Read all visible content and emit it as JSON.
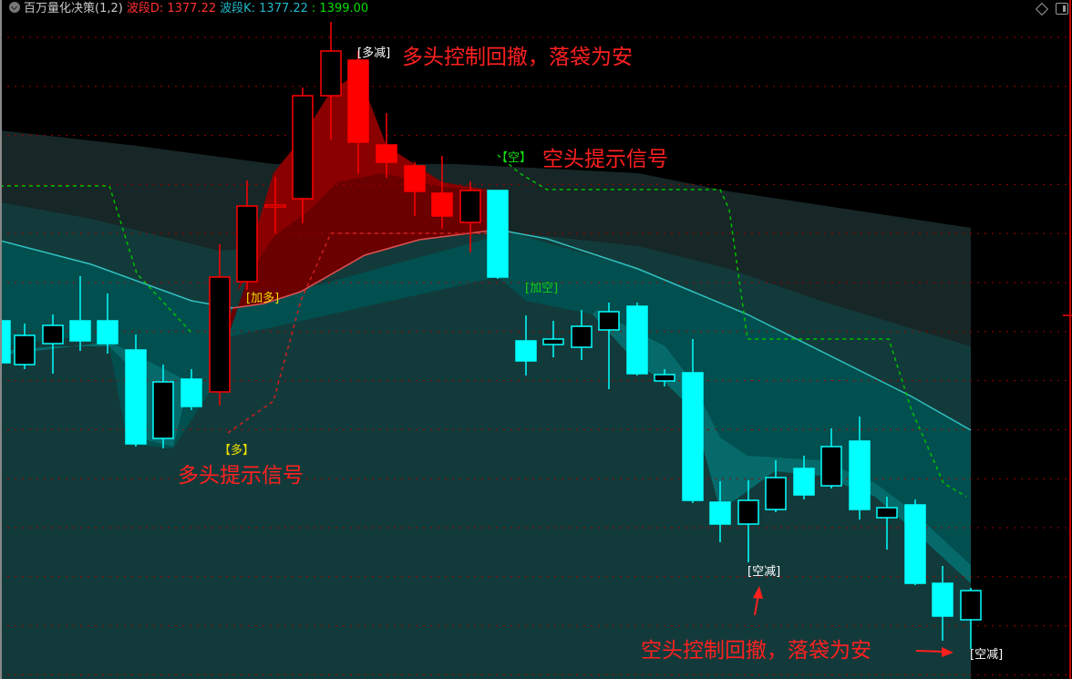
{
  "header": {
    "title": "百万量化决策(1,2)",
    "wave_d_label": "波段D: 1377.22",
    "wave_k_label": "波段K: 1377.22",
    "extra_value": ": 1399.00",
    "colors": {
      "title": "#c8c8c8",
      "wave_d": "#ff3030",
      "wave_k": "#20b8c8",
      "extra": "#00e000"
    }
  },
  "annotations": {
    "long_reduce_top": "[多减]",
    "long_control_text": "多头控制回撤，落袋为安",
    "short_signal_tag": "【空】",
    "short_signal_text": "空头提示信号",
    "add_long": "[加多]",
    "add_short": "[加空]",
    "long_signal_tag": "【多】",
    "long_signal_text": "多头提示信号",
    "short_reduce_mid": "[空减]",
    "short_control_text": "空头控制回撤，落袋为安",
    "short_reduce_end": "[空减]"
  },
  "colors": {
    "background": "#000000",
    "bull_zone_candle": "#ff0000",
    "bear_zone_candle": "#00ffff",
    "grid": "#b00000",
    "signal_line_green": "#00c000",
    "midline_cyan": "#30c0c0"
  },
  "icons": [
    "collapse-icon",
    "diamond-icon",
    "window-toggle-icon",
    "arrow-up-icon",
    "arrow-right-icon"
  ]
}
